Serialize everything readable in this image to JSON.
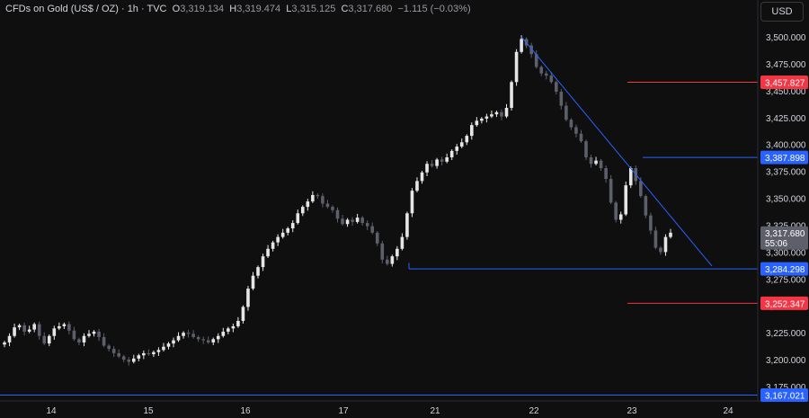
{
  "legend": {
    "symbol": "CFDs on Gold (US$ / OZ) · 1h · TVC",
    "o_label": "O",
    "o": "3,319.134",
    "h_label": "H",
    "h": "3,319.474",
    "l_label": "L",
    "l": "3,315.125",
    "c_label": "C",
    "c": "3,317.680",
    "change": "−1.115 (−0.03%)"
  },
  "currency_button": "USD",
  "colors": {
    "background": "#0f0f0f",
    "up_candle": "#e6e6e6",
    "down_candle": "#5d606b",
    "trendline": "#2962ff",
    "resistance": "#f23645",
    "support": "#2962ff",
    "price_tag": "#5d606b"
  },
  "chart_data": {
    "type": "candlestick",
    "x_tick_labels": [
      "14",
      "15",
      "16",
      "17",
      "21",
      "22",
      "23",
      "24"
    ],
    "y_tick_labels": [
      "3,175.000",
      "3,200.000",
      "3,225.000",
      "3,250.000",
      "3,275.000",
      "3,300.000",
      "3,325.000",
      "3,350.000",
      "3,375.000",
      "3,400.000",
      "3,425.000",
      "3,450.000",
      "3,475.000",
      "3,500.000"
    ],
    "ylim": [
      3163,
      3520
    ],
    "price_path": [
      3216,
      3222,
      3230,
      3232,
      3226,
      3228,
      3233,
      3222,
      3215,
      3222,
      3229,
      3231,
      3233,
      3227,
      3219,
      3216,
      3222,
      3224,
      3226,
      3221,
      3213,
      3210,
      3206,
      3203,
      3200,
      3198,
      3201,
      3204,
      3206,
      3205,
      3207,
      3209,
      3212,
      3215,
      3218,
      3222,
      3225,
      3224,
      3221,
      3219,
      3218,
      3216,
      3219,
      3222,
      3226,
      3229,
      3231,
      3236,
      3249,
      3266,
      3278,
      3286,
      3296,
      3303,
      3309,
      3314,
      3318,
      3322,
      3327,
      3336,
      3342,
      3347,
      3353,
      3352,
      3345,
      3342,
      3339,
      3331,
      3326,
      3330,
      3328,
      3332,
      3327,
      3324,
      3318,
      3308,
      3293,
      3289,
      3296,
      3303,
      3314,
      3336,
      3357,
      3366,
      3374,
      3382,
      3380,
      3386,
      3384,
      3388,
      3394,
      3398,
      3402,
      3408,
      3418,
      3422,
      3424,
      3426,
      3428,
      3430,
      3426,
      3434,
      3458,
      3486,
      3498,
      3492,
      3484,
      3472,
      3466,
      3464,
      3458,
      3449,
      3436,
      3423,
      3416,
      3410,
      3403,
      3388,
      3382,
      3385,
      3378,
      3368,
      3346,
      3330,
      3335,
      3362,
      3378,
      3366,
      3352,
      3334,
      3320,
      3304,
      3300,
      3314,
      3318
    ],
    "annotations": {
      "resistance_level": "3,457.827",
      "upper_level": "3,387.898",
      "current_price": "3,317.680",
      "countdown": "55:06",
      "support_level": "3,284.298",
      "lower_support": "3,252.347",
      "bottom_level": "3,167.021"
    },
    "levels": {
      "resistance": 3457.827,
      "upper": 3387.898,
      "support": 3284.298,
      "lower_support": 3252.347,
      "bottom": 3167.021
    },
    "trendline": {
      "from_index": 104,
      "from_price": 3500,
      "to_price": 3287
    },
    "grid": false
  }
}
